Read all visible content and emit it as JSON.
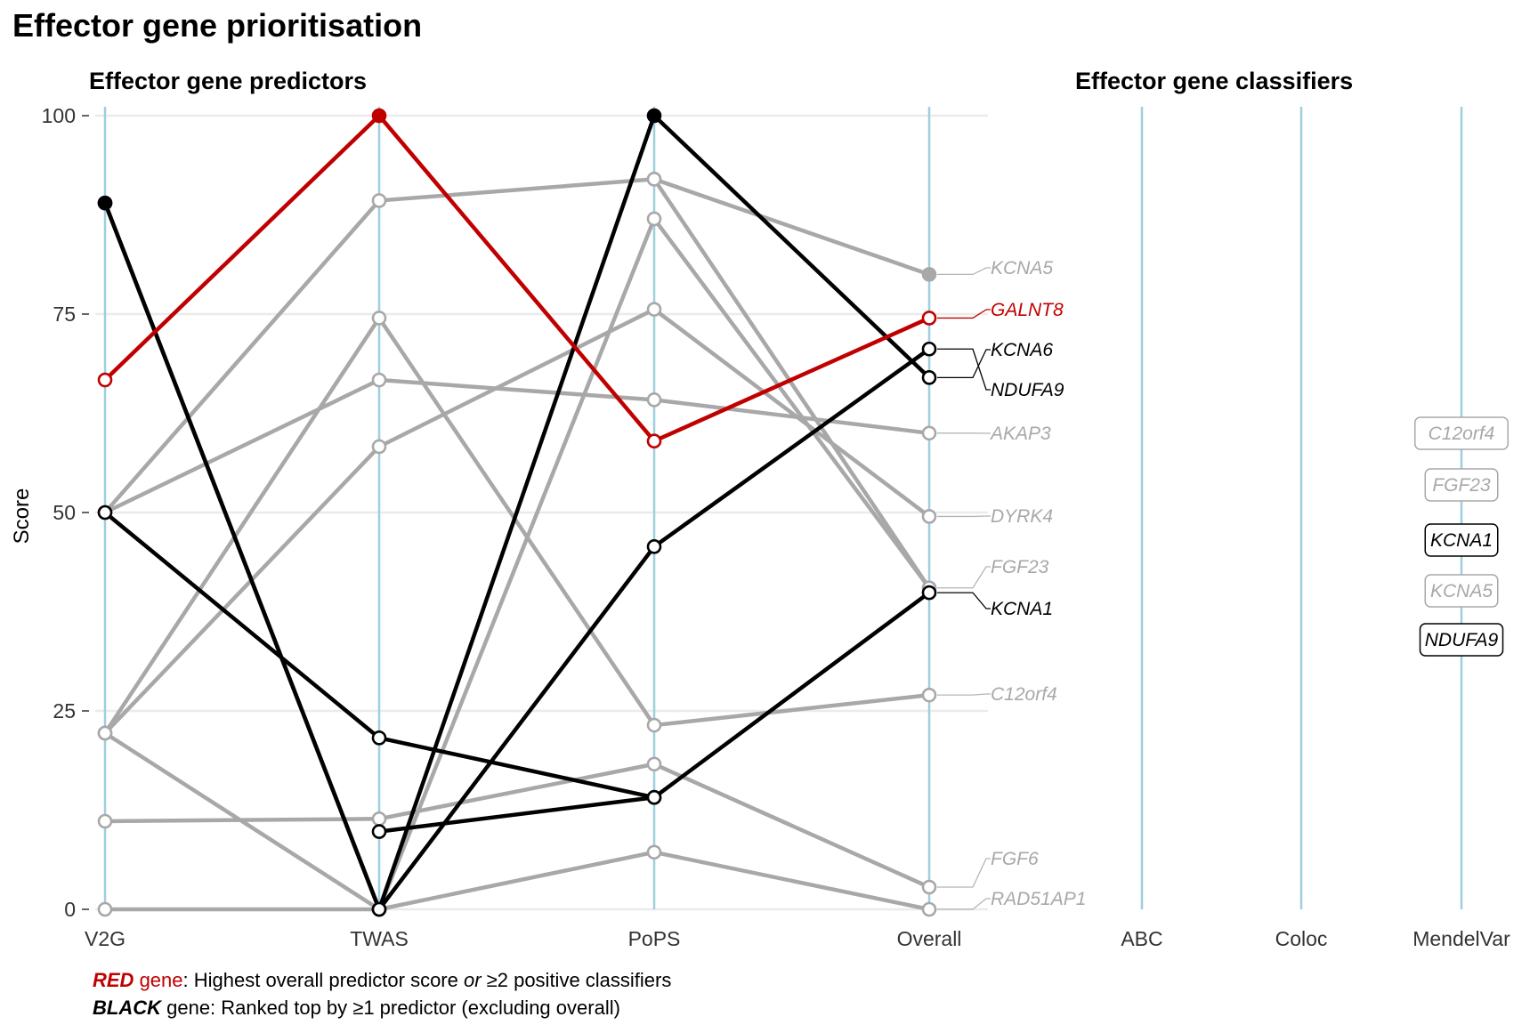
{
  "title": "Effector gene prioritisation",
  "footer": {
    "line1_key": "RED",
    "line1_gene": " gene",
    "line1_pre": ": Highest overall predictor score ",
    "line1_or": "or",
    "line1_post": " ≥2 positive classifiers",
    "line2_key": "BLACK",
    "line2_text": " gene: Ranked top by ≥1 predictor (excluding overall)"
  },
  "colors": {
    "red": "#c00000",
    "black": "#000000",
    "grey": "#a8a8a8",
    "axis": "#9ecfdd",
    "grid": "#ebebeb"
  },
  "chart_data": [
    {
      "type": "line",
      "title": "Effector gene predictors",
      "xlabel": "",
      "ylabel": "Score",
      "x": [
        "V2G",
        "TWAS",
        "PoPS",
        "Overall"
      ],
      "ylim": [
        0,
        100
      ],
      "yticks": [
        0,
        25,
        50,
        75,
        100
      ],
      "grid": "horizontal",
      "series": [
        {
          "name": "KCNA5",
          "category": "grey",
          "values": [
            null,
            null,
            92,
            80
          ],
          "filled": [
            false,
            false,
            false,
            true
          ]
        },
        {
          "name": "GALNT8",
          "category": "red",
          "values": [
            66.7,
            100,
            59,
            74.5
          ],
          "filled": [
            false,
            true,
            false,
            false
          ]
        },
        {
          "name": "KCNA6",
          "category": "black",
          "values": [
            89,
            0,
            100,
            67
          ],
          "filled": [
            true,
            false,
            true,
            false
          ]
        },
        {
          "name": "NDUFA9",
          "category": "black",
          "values": [
            89,
            0,
            45.7,
            70.6
          ],
          "filled": [
            true,
            false,
            false,
            false
          ]
        },
        {
          "name": "AKAP3",
          "category": "grey",
          "values": [
            50,
            66.7,
            64.2,
            60
          ],
          "filled": [
            false,
            false,
            false,
            false
          ]
        },
        {
          "name": "DYRK4",
          "category": "grey",
          "values": [
            22.2,
            58.3,
            75.6,
            49.5
          ],
          "filled": [
            false,
            false,
            false,
            false
          ]
        },
        {
          "name": "FGF23",
          "category": "grey",
          "values": [
            50,
            89.3,
            92,
            40.5
          ],
          "filled": [
            false,
            false,
            false,
            false
          ]
        },
        {
          "name": "KCNA1",
          "category": "black",
          "values": [
            50,
            21.6,
            14.1,
            39.9
          ],
          "filled": [
            false,
            false,
            false,
            false
          ]
        },
        {
          "name": "C12orf4",
          "category": "grey",
          "values": [
            22.2,
            74.5,
            23.2,
            27
          ],
          "filled": [
            false,
            false,
            false,
            false
          ]
        },
        {
          "name": "FGF6",
          "category": "grey",
          "values": [
            11.1,
            11.4,
            18.3,
            2.8
          ],
          "filled": [
            false,
            false,
            false,
            false
          ]
        },
        {
          "name": "RAD51AP1",
          "category": "grey",
          "values": [
            0,
            0,
            7.2,
            0
          ],
          "filled": [
            false,
            false,
            false,
            false
          ]
        },
        {
          "name": "",
          "category": "grey",
          "values": [
            22.2,
            0,
            87,
            40.5
          ],
          "filled": [
            false,
            false,
            false,
            false
          ]
        },
        {
          "name": "",
          "category": "black",
          "values": [
            null,
            9.8,
            14.1,
            null
          ],
          "filled": [
            false,
            false,
            false,
            false
          ]
        }
      ],
      "labels": [
        {
          "text": "KCNA5",
          "category": "grey"
        },
        {
          "text": "GALNT8",
          "category": "red"
        },
        {
          "text": "KCNA6",
          "category": "black"
        },
        {
          "text": "NDUFA9",
          "category": "black"
        },
        {
          "text": "AKAP3",
          "category": "grey"
        },
        {
          "text": "DYRK4",
          "category": "grey"
        },
        {
          "text": "FGF23",
          "category": "grey"
        },
        {
          "text": "KCNA1",
          "category": "black"
        },
        {
          "text": "C12orf4",
          "category": "grey"
        },
        {
          "text": "FGF6",
          "category": "grey"
        },
        {
          "text": "RAD51AP1",
          "category": "grey"
        }
      ]
    },
    {
      "type": "table",
      "title": "Effector gene classifiers",
      "x": [
        "ABC",
        "Coloc",
        "MendelVar"
      ],
      "entries": [
        {
          "classifier": "MendelVar",
          "gene": "C12orf4",
          "category": "grey"
        },
        {
          "classifier": "MendelVar",
          "gene": "FGF23",
          "category": "grey"
        },
        {
          "classifier": "MendelVar",
          "gene": "KCNA1",
          "category": "black"
        },
        {
          "classifier": "MendelVar",
          "gene": "KCNA5",
          "category": "grey"
        },
        {
          "classifier": "MendelVar",
          "gene": "NDUFA9",
          "category": "black"
        }
      ]
    }
  ]
}
